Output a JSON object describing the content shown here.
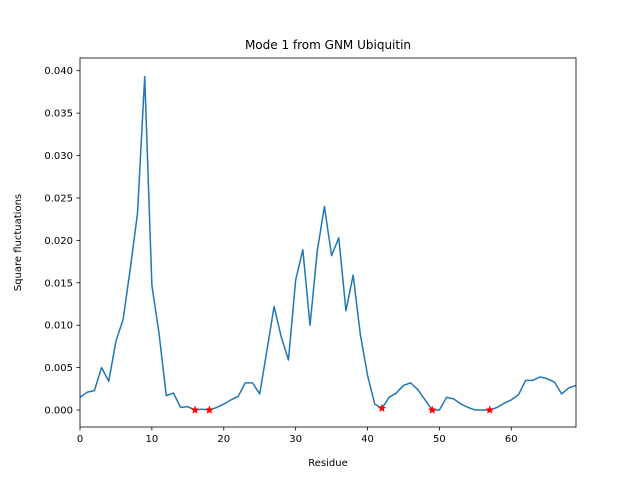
{
  "chart_data": {
    "type": "line",
    "title": "Mode 1 from GNM Ubiquitin",
    "xlabel": "Residue",
    "ylabel": "Square fluctuations",
    "xlim": [
      0,
      69
    ],
    "ylim": [
      -0.002,
      0.0415
    ],
    "grid": false,
    "x_ticks": [
      0,
      10,
      20,
      30,
      40,
      50,
      60
    ],
    "y_ticks": [
      0.0,
      0.005,
      0.01,
      0.015,
      0.02,
      0.025,
      0.03,
      0.035,
      0.04
    ],
    "x_tick_labels": [
      "0",
      "10",
      "20",
      "30",
      "40",
      "50",
      "60"
    ],
    "y_tick_labels": [
      "0.000",
      "0.005",
      "0.010",
      "0.015",
      "0.020",
      "0.025",
      "0.030",
      "0.035",
      "0.040"
    ],
    "series": [
      {
        "color": "#1f77b4",
        "x": [
          0,
          1,
          2,
          3,
          4,
          5,
          6,
          7,
          8,
          9,
          10,
          11,
          12,
          13,
          14,
          15,
          16,
          17,
          18,
          19,
          20,
          21,
          22,
          23,
          24,
          25,
          26,
          27,
          28,
          29,
          30,
          31,
          32,
          33,
          34,
          35,
          36,
          37,
          38,
          39,
          40,
          41,
          42,
          43,
          44,
          45,
          46,
          47,
          48,
          49,
          50,
          51,
          52,
          53,
          54,
          55,
          56,
          57,
          58,
          59,
          60,
          61,
          62,
          63,
          64,
          65,
          66,
          67,
          68,
          69
        ],
        "y": [
          0.0015,
          0.0021,
          0.0023,
          0.005,
          0.0034,
          0.0081,
          0.0107,
          0.0167,
          0.0232,
          0.0393,
          0.0147,
          0.009,
          0.0017,
          0.002,
          0.0003,
          0.0004,
          0.0,
          0.0001,
          0.0,
          0.0003,
          0.0007,
          0.0012,
          0.0016,
          0.0032,
          0.0032,
          0.0019,
          0.007,
          0.0122,
          0.0086,
          0.0059,
          0.0153,
          0.0189,
          0.01,
          0.0187,
          0.024,
          0.0182,
          0.0203,
          0.0117,
          0.0159,
          0.0089,
          0.0041,
          0.0007,
          0.0002,
          0.0015,
          0.002,
          0.0029,
          0.0032,
          0.0024,
          0.0012,
          0.0,
          0.0,
          0.0015,
          0.0013,
          0.0007,
          0.0003,
          0.0,
          0.0,
          0.0,
          0.0003,
          0.0008,
          0.0012,
          0.0018,
          0.0035,
          0.0035,
          0.0039,
          0.0037,
          0.0033,
          0.0019,
          0.0026,
          0.0029
        ]
      },
      {
        "color": "#ff0000",
        "marker": "star",
        "x": [
          16,
          18,
          42,
          49,
          57
        ],
        "y": [
          0.0,
          0.0,
          0.0002,
          0.0,
          0.0
        ]
      }
    ]
  }
}
